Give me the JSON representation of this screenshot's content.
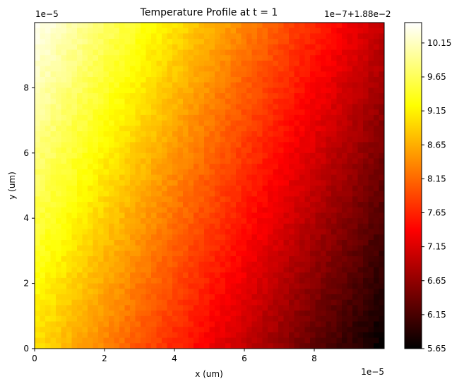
{
  "chart_data": {
    "type": "heatmap",
    "title": "Temperature Profile at t = 1",
    "xlabel": "x (um)",
    "ylabel": "y (um)",
    "x_offset_text": "1e−5",
    "y_offset_text": "1e−5",
    "xlim": [
      0,
      1.0
    ],
    "ylim": [
      0,
      1.0
    ],
    "x_ticks": [
      0,
      0.2,
      0.4,
      0.6,
      0.8
    ],
    "x_tick_labels": [
      "0",
      "2",
      "4",
      "6",
      "8"
    ],
    "y_ticks": [
      0,
      0.2,
      0.4,
      0.6,
      0.8
    ],
    "y_tick_labels": [
      "0",
      "2",
      "4",
      "6",
      "8"
    ],
    "colormap": "hot",
    "colorbar": {
      "offset_text": "1e−7+1.88e−2",
      "vmin": 5.65,
      "vmax": 10.45,
      "ticks": [
        5.65,
        6.15,
        6.65,
        7.15,
        7.65,
        8.15,
        8.65,
        9.15,
        9.65,
        10.15
      ],
      "tick_labels": [
        "5.65",
        "6.15",
        "6.65",
        "7.15",
        "7.65",
        "8.15",
        "8.65",
        "9.15",
        "9.65",
        "10.15"
      ]
    },
    "field": {
      "description_values": "approximate temperature field values (colorbar units) sampled at corners",
      "top_left": 10.4,
      "top_right": 7.0,
      "bottom_left": 9.0,
      "bottom_right": 5.65
    }
  }
}
